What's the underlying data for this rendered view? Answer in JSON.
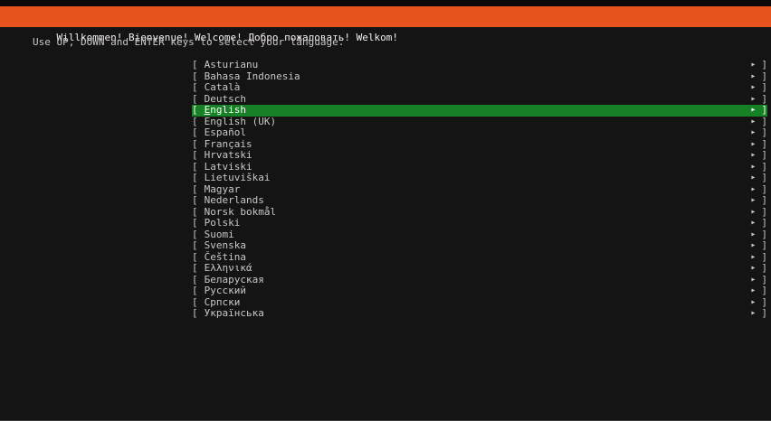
{
  "header": {
    "title": "Willkommen! Bienvenue! Welcome! Добро пожаловать! Welkom!"
  },
  "instruction": "Use UP, DOWN and ENTER keys to select your language.",
  "language_list": {
    "selected_index": 4,
    "items": [
      "Asturianu",
      "Bahasa Indonesia",
      "Català",
      "Deutsch",
      "English",
      "English (UK)",
      "Español",
      "Français",
      "Hrvatski",
      "Latviski",
      "Lietuviškai",
      "Magyar",
      "Nederlands",
      "Norsk bokmål",
      "Polski",
      "Suomi",
      "Svenska",
      "Čeština",
      "Ελληνικά",
      "Беларуская",
      "Русский",
      "Српски",
      "Українська"
    ]
  },
  "glyphs": {
    "open_bracket": "[",
    "close_bracket": "]",
    "arrow": "▸"
  },
  "colors": {
    "accent_orange": "#e8521d",
    "highlight_green": "#178225",
    "list_text": "#c8c8c8",
    "selected_text": "#ffffff",
    "background": "#141414"
  }
}
